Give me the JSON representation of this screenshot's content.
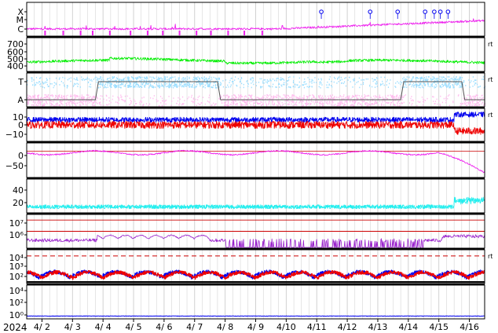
{
  "chart_data": {
    "type": "line",
    "x_axis": {
      "year_label": "2024",
      "tick_labels": [
        "4/ 2",
        "4/ 3",
        "4/ 4",
        "4/ 5",
        "4/ 6",
        "4/ 7",
        "4/ 8",
        "4/ 9",
        "4/10",
        "4/11",
        "4/12",
        "4/13",
        "4/14",
        "4/15",
        "4/16"
      ],
      "range_days": [
        1.5,
        16.5
      ]
    },
    "colors": {
      "magenta": "#ee22ee",
      "green": "#00ee00",
      "lightblue": "#99ddff",
      "pink": "#ffbbee",
      "blue": "#0000ee",
      "red": "#ee0000",
      "cyan": "#22eeee",
      "purple": "#9922cc",
      "darkred": "#cc0000",
      "grid": "#cccccc",
      "frame": "#000000",
      "bandline": "#555555"
    },
    "panels": [
      {
        "id": "xray",
        "tick_labels": [
          "X",
          "M",
          "C"
        ],
        "series": [
          {
            "color": "magenta",
            "level_start": 0.15,
            "level_end": 0.45
          }
        ],
        "flare_marker_days": [
          11.15,
          12.75,
          13.65,
          14.55,
          14.85,
          15.05,
          15.3
        ],
        "side_label": ""
      },
      {
        "id": "speed",
        "tick_labels": [
          "700",
          "600",
          "500",
          "400"
        ],
        "ylim": [
          300,
          750
        ],
        "series": [
          {
            "color": "green",
            "baseline": 430
          }
        ],
        "side_label": "rt"
      },
      {
        "id": "band",
        "tick_labels": [
          "T",
          "A"
        ],
        "high_intervals_days": [
          [
            3.8,
            7.8
          ],
          [
            13.8,
            15.8
          ]
        ],
        "side_label": "rt"
      },
      {
        "id": "field",
        "tick_labels": [
          "10",
          "0",
          "−10"
        ],
        "ylim": [
          -17,
          15
        ],
        "series": [
          {
            "color": "blue",
            "baseline": 4
          },
          {
            "color": "red",
            "baseline": -1
          }
        ],
        "side_label": "rt"
      },
      {
        "id": "index",
        "tick_labels": [
          "0",
          "−50"
        ],
        "ylim": [
          -80,
          25
        ],
        "series": [
          {
            "color": "magenta",
            "baseline": -5
          }
        ],
        "side_label": ""
      },
      {
        "id": "cyan",
        "tick_labels": [
          "40",
          "20"
        ],
        "ylim": [
          0,
          50
        ],
        "series": [
          {
            "color": "cyan",
            "baseline": 6
          }
        ],
        "side_label": ""
      },
      {
        "id": "electron",
        "tick_labels": [
          "10⁷",
          "10⁶"
        ],
        "log_ylim": [
          4.5,
          7.5
        ],
        "reference_levels_log": [
          7,
          6
        ],
        "series": [
          {
            "color": "purple",
            "baseline_log": 5.2
          }
        ],
        "side_label": ""
      },
      {
        "id": "proton",
        "tick_labels": [
          "10⁴",
          "10³",
          "10²"
        ],
        "log_ylim": [
          1,
          4.3
        ],
        "reference_levels_log": [
          3.7
        ],
        "series": [
          {
            "color": "blue",
            "baseline_log": 1.6
          },
          {
            "color": "red",
            "baseline_log": 1.55
          }
        ],
        "side_label": "rt"
      },
      {
        "id": "bottom",
        "tick_labels": [
          "10⁴",
          "10²",
          "10⁰"
        ],
        "log_ylim": [
          -0.2,
          4.6
        ],
        "series": [
          {
            "color": "blue",
            "baseline_log": 0.2
          }
        ],
        "side_label": ""
      }
    ]
  }
}
